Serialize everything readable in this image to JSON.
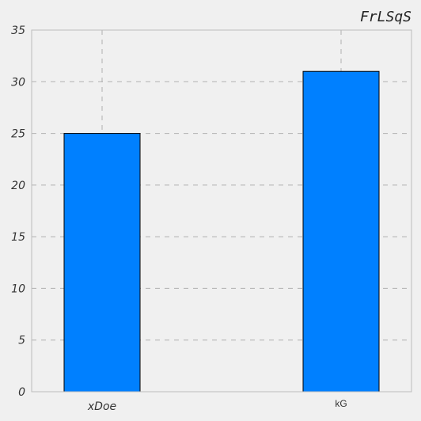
{
  "chart_data": {
    "type": "bar",
    "title": "FrLSqS",
    "xlabel": "",
    "ylabel": "",
    "categories": [
      "xDoe",
      "kG"
    ],
    "values": [
      25,
      31
    ],
    "ylim": [
      0,
      35
    ],
    "yticks": [
      "0",
      "5",
      "10",
      "15",
      "20",
      "25",
      "30",
      "35"
    ],
    "grid": true,
    "colors": {
      "bar": "#0080ff",
      "bar_edge": "#000000",
      "grid": "#b0b0b0",
      "axes_background": "#f0f0f0",
      "axes_edge": "#bcbcbc"
    }
  }
}
